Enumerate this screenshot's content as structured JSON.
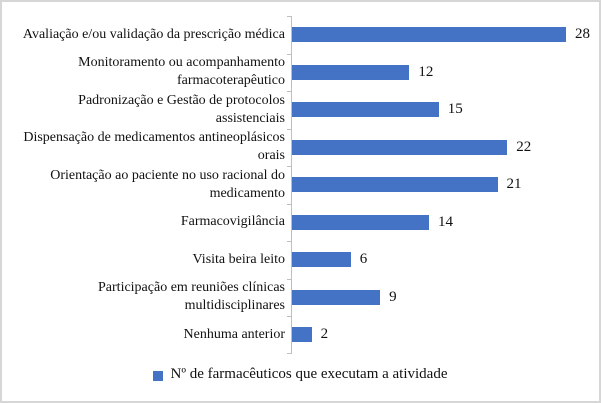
{
  "chart_data": {
    "type": "bar",
    "orientation": "horizontal",
    "title": "",
    "xlabel": "",
    "ylabel": "",
    "xlim": [
      0,
      28
    ],
    "grid": false,
    "legend_position": "bottom",
    "series_name": "Nº de farmacêuticos que executam a atividade",
    "categories": [
      "Avaliação e/ou validação da prescrição médica",
      "Monitoramento ou acompanhamento farmacoterapêutico",
      "Padronização e Gestão de protocolos assistenciais",
      "Dispensação de medicamentos antineoplásicos orais",
      "Orientação ao paciente no uso racional do medicamento",
      "Farmacovigilância",
      "Visita beira leito",
      "Participação em reuniões clínicas multidisciplinares",
      "Nenhuma anterior"
    ],
    "values": [
      28,
      12,
      15,
      22,
      21,
      14,
      6,
      9,
      2
    ],
    "bar_color": "#4472C4",
    "axis_color": "#BFBFBF",
    "frame_border_color": "#D6D6D6",
    "text_color": "#111111"
  }
}
